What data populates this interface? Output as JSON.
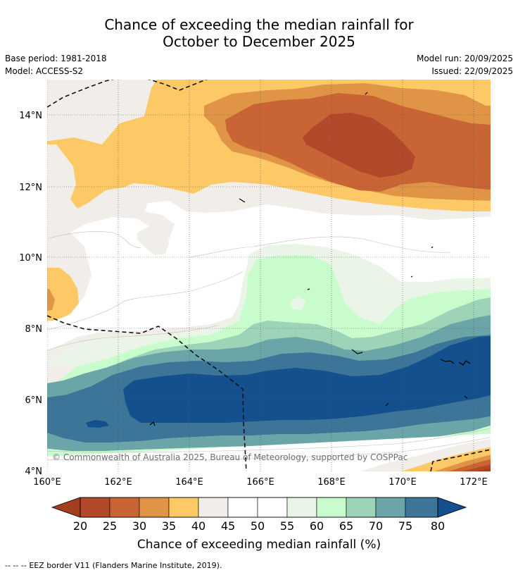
{
  "title": {
    "line1": "Chance of exceeding the median rainfall for",
    "line2": "October to December 2025"
  },
  "meta": {
    "base_period": "Base period: 1981-2018",
    "model": "Model: ACCESS-S2",
    "model_run": "Model run: 20/09/2025",
    "issued": "Issued: 22/09/2025"
  },
  "map": {
    "copyright": "© Commonwealth of Australia 2025, Bureau of Meteorology, supported by COSPPac",
    "lon_labels": [
      "160°E",
      "162°E",
      "164°E",
      "166°E",
      "168°E",
      "170°E",
      "172°E"
    ],
    "lat_labels": [
      "14°N",
      "12°N",
      "10°N",
      "8°N",
      "6°N",
      "4°N"
    ],
    "lon_range": [
      160,
      172.5
    ],
    "lat_range": [
      4,
      15.1
    ],
    "colors": {
      "lt20": "#a53d1f",
      "20-25": "#b1492a",
      "25-30": "#c96434",
      "30-35": "#e09446",
      "35-40": "#fdc866",
      "40-45": "#f1ede8",
      "45-55": "#ffffff",
      "55-60": "#eaf5e7",
      "60-65": "#c9fccd",
      "65-70": "#9dd4b8",
      "70-75": "#6ca5a7",
      "75-80": "#3c7598",
      "gt80": "#14508d"
    }
  },
  "colorbar": {
    "labels": [
      "20",
      "25",
      "30",
      "35",
      "40",
      "45",
      "50",
      "55",
      "60",
      "65",
      "70",
      "75",
      "80"
    ],
    "colors": [
      "#b1492a",
      "#c96434",
      "#e09446",
      "#fdc866",
      "#f1ede8",
      "#ffffff",
      "#ffffff",
      "#eaf5e7",
      "#c9fccd",
      "#9dd4b8",
      "#6ca5a7",
      "#3c7598"
    ],
    "low_extend_color": "#a53d1f",
    "high_extend_color": "#14508d",
    "title": "Chance of exceeding median rainfall (%)"
  },
  "footer": {
    "legend_symbol": "--  --  --",
    "legend_text": "EEZ border V11 (Flanders Marine Institute, 2019)."
  }
}
